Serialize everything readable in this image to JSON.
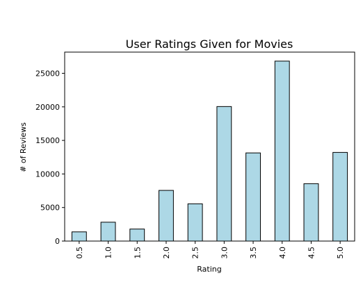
{
  "chart_data": {
    "type": "bar",
    "title": "User Ratings Given for Movies",
    "xlabel": "Rating",
    "ylabel": "# of Reviews",
    "categories": [
      "0.5",
      "1.0",
      "1.5",
      "2.0",
      "2.5",
      "3.0",
      "3.5",
      "4.0",
      "4.5",
      "5.0"
    ],
    "values": [
      1370,
      2811,
      1791,
      7551,
      5550,
      20047,
      13136,
      26818,
      8551,
      13211
    ],
    "yticks": [
      "0",
      "5000",
      "10000",
      "15000",
      "20000",
      "25000"
    ],
    "ylim": [
      0,
      28159
    ],
    "grid": false,
    "colors": {
      "bar_fill": "#add8e6",
      "bar_stroke": "#000000",
      "axis": "#000000"
    }
  }
}
